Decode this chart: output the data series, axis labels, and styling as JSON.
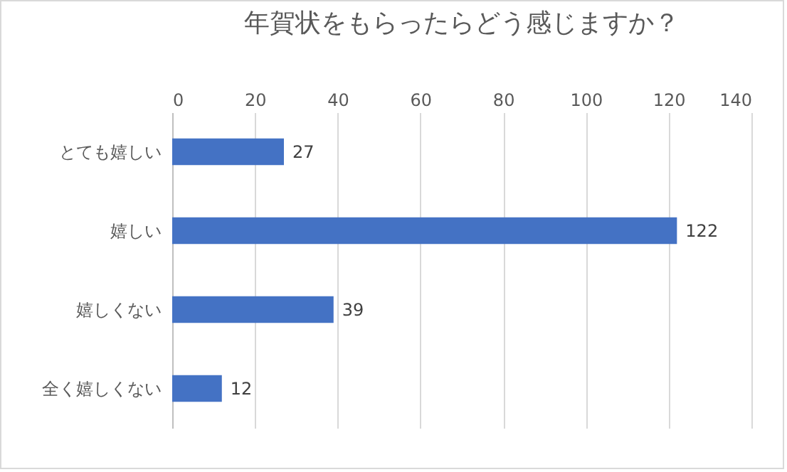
{
  "chart_data": {
    "type": "bar",
    "orientation": "horizontal",
    "title": "年賀状をもらったらどう感じますか？",
    "categories": [
      "とても嬉しい",
      "嬉しい",
      "嬉しくない",
      "全く嬉しくない"
    ],
    "values": [
      27,
      122,
      39,
      12
    ],
    "color": "#4472c4",
    "xlim": [
      0,
      140
    ],
    "xticks": [
      0,
      20,
      40,
      60,
      80,
      100,
      120,
      140
    ],
    "grid": "x",
    "data_labels": true
  }
}
